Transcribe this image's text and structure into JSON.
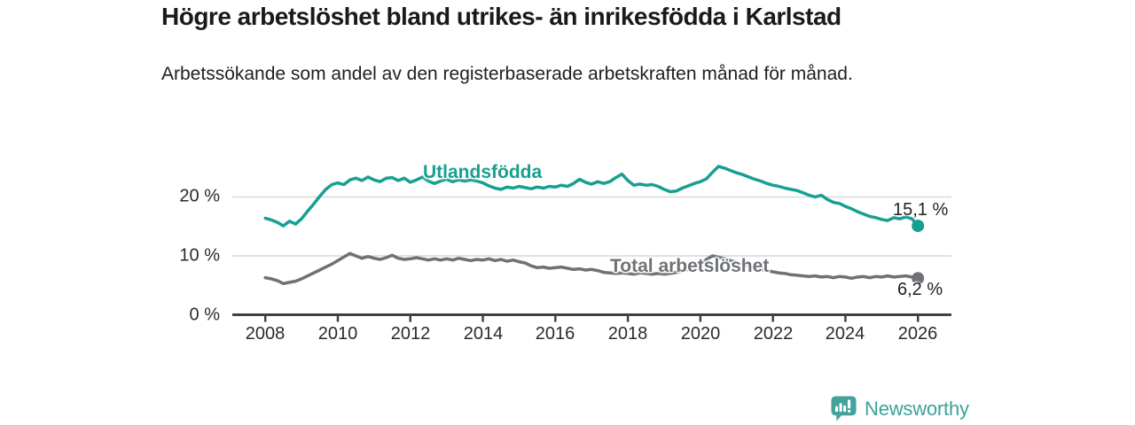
{
  "header": {
    "title": "Högre arbetslöshet bland utrikes- än inrikesfödda i Karlstad",
    "subtitle": "Arbetssökande som andel av den registerbaserade arbetskraften månad för månad."
  },
  "colors": {
    "foreign_born_line": "#16a090",
    "total_line": "#6e7276",
    "axis": "#404040",
    "gridline": "#d9d9d9",
    "value_text": "#222222",
    "brand_teal": "#3ba29a"
  },
  "branding": {
    "logo_text": "Newsworthy",
    "logo_icon": "newsworthy-speech-bubble-chart-icon"
  },
  "chart_data": {
    "type": "line",
    "title": "Högre arbetslöshet bland utrikes- än inrikesfödda i Karlstad",
    "subtitle": "Arbetssökande som andel av den registerbaserade arbetskraften månad för månad.",
    "x_start": 2008,
    "x_step_years": 0.1666667,
    "x_axis": {
      "tick_values": [
        2008,
        2010,
        2012,
        2014,
        2016,
        2018,
        2020,
        2022,
        2024,
        2026
      ],
      "tick_labels": [
        "2008",
        "2010",
        "2012",
        "2014",
        "2016",
        "2018",
        "2020",
        "2022",
        "2024",
        "2026"
      ]
    },
    "y_axis": {
      "tick_labels": [
        "0 %",
        "10 %",
        "20 %"
      ],
      "grid_values": [
        10,
        20
      ],
      "range": [
        0,
        27
      ],
      "unit": "%"
    },
    "legend_position": "inline-labels",
    "grid": true,
    "series": [
      {
        "name": "Utlandsfödda",
        "color": "#16a090",
        "end_label": "15,1 %",
        "end_value": 15.1,
        "values": [
          16.4,
          16.1,
          15.7,
          15.1,
          15.9,
          15.4,
          16.3,
          17.6,
          18.8,
          20.1,
          21.3,
          22.1,
          22.4,
          22.1,
          22.9,
          23.2,
          22.8,
          23.4,
          22.9,
          22.6,
          23.2,
          23.3,
          22.8,
          23.2,
          22.5,
          22.9,
          23.4,
          22.7,
          22.3,
          22.7,
          23.0,
          22.6,
          22.9,
          22.7,
          22.9,
          22.7,
          22.4,
          21.9,
          21.5,
          21.3,
          21.7,
          21.5,
          21.8,
          21.6,
          21.4,
          21.7,
          21.5,
          21.8,
          21.7,
          22.0,
          21.8,
          22.3,
          23.0,
          22.5,
          22.2,
          22.6,
          22.3,
          22.6,
          23.3,
          23.9,
          22.8,
          22.0,
          22.2,
          22.0,
          22.1,
          21.8,
          21.3,
          20.9,
          21.0,
          21.5,
          21.9,
          22.3,
          22.6,
          23.1,
          24.2,
          25.2,
          24.9,
          24.5,
          24.1,
          23.8,
          23.4,
          23.0,
          22.7,
          22.3,
          22.0,
          21.8,
          21.5,
          21.3,
          21.1,
          20.7,
          20.3,
          20.0,
          20.3,
          19.6,
          19.1,
          18.9,
          18.4,
          18.0,
          17.5,
          17.1,
          16.7,
          16.5,
          16.2,
          16.0,
          16.5,
          16.3,
          16.6,
          16.3,
          15.1
        ]
      },
      {
        "name": "Total arbetslöshet",
        "color": "#6e7276",
        "end_label": "6,2 %",
        "end_value": 6.2,
        "values": [
          6.3,
          6.1,
          5.8,
          5.3,
          5.5,
          5.7,
          6.1,
          6.6,
          7.1,
          7.6,
          8.1,
          8.6,
          9.2,
          9.8,
          10.4,
          10.0,
          9.6,
          9.9,
          9.6,
          9.4,
          9.7,
          10.1,
          9.6,
          9.4,
          9.5,
          9.7,
          9.5,
          9.3,
          9.5,
          9.3,
          9.5,
          9.3,
          9.6,
          9.4,
          9.2,
          9.4,
          9.3,
          9.5,
          9.2,
          9.4,
          9.1,
          9.3,
          9.0,
          8.8,
          8.3,
          8.0,
          8.1,
          7.9,
          8.0,
          8.1,
          7.9,
          7.7,
          7.8,
          7.6,
          7.7,
          7.5,
          7.2,
          7.1,
          7.0,
          7.1,
          7.0,
          6.9,
          7.1,
          7.0,
          6.9,
          7.0,
          6.9,
          7.0,
          7.2,
          7.4,
          7.7,
          8.1,
          8.6,
          9.4,
          10.0,
          9.8,
          9.5,
          9.2,
          8.9,
          8.6,
          8.3,
          8.0,
          7.7,
          7.5,
          7.3,
          7.1,
          7.0,
          6.8,
          6.7,
          6.6,
          6.5,
          6.6,
          6.4,
          6.5,
          6.3,
          6.5,
          6.4,
          6.2,
          6.4,
          6.5,
          6.3,
          6.5,
          6.4,
          6.6,
          6.4,
          6.5,
          6.6,
          6.4,
          6.2
        ]
      }
    ]
  }
}
